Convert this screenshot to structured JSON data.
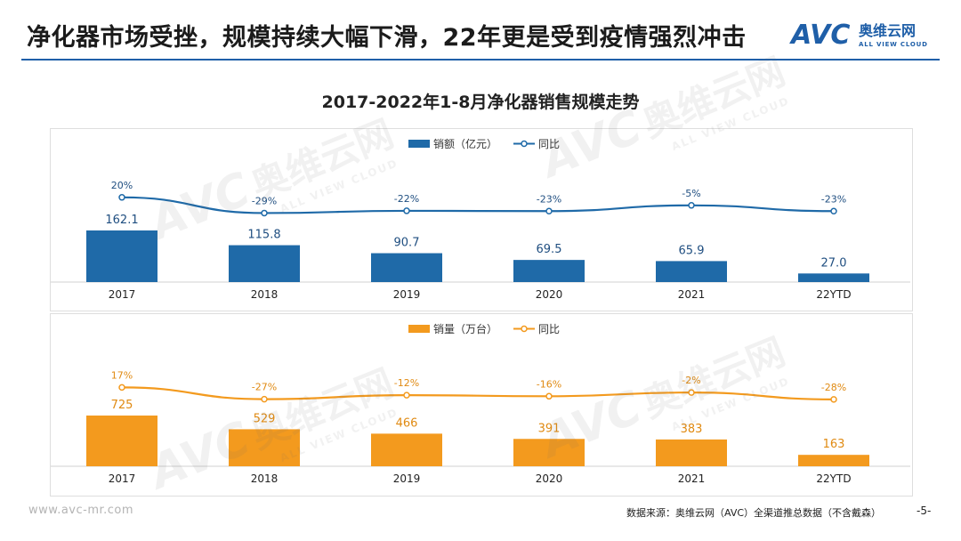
{
  "header": {
    "title": "净化器市场受挫，规模持续大幅下滑，22年更是受到疫情强烈冲击",
    "logo_mark": "AVC",
    "logo_cn": "奥维云网",
    "logo_en": "ALL VIEW CLOUD"
  },
  "footer": {
    "website": "www.avc-mr.com",
    "source": "数据来源：奥维云网（AVC）全渠道推总数据（不含戴森）",
    "page": "-5-"
  },
  "colors": {
    "brand": "#1f5fa8",
    "value_bar": "#1f6aa8",
    "volume_bar": "#f39a1e",
    "value_line": "#1f6aa8",
    "volume_line": "#f39a1e"
  },
  "chart_data": [
    {
      "type": "bar",
      "title": "2017-2022年1-8月净化器销售规模走势",
      "categories": [
        "2017",
        "2018",
        "2019",
        "2020",
        "2021",
        "22YTD"
      ],
      "series": [
        {
          "name": "销额（亿元）",
          "type": "bar",
          "values": [
            162.1,
            115.8,
            90.7,
            69.5,
            65.9,
            27.0
          ],
          "labels": [
            "162.1",
            "115.8",
            "90.7",
            "69.5",
            "65.9",
            "27.0"
          ]
        },
        {
          "name": "同比",
          "type": "line",
          "values": [
            20,
            -29,
            -22,
            -23,
            -5,
            -23
          ],
          "labels": [
            "20%",
            "-29%",
            "-22%",
            "-23%",
            "-5%",
            "-23%"
          ]
        }
      ],
      "legend": "top-center",
      "grid": false
    },
    {
      "type": "bar",
      "categories": [
        "2017",
        "2018",
        "2019",
        "2020",
        "2021",
        "22YTD"
      ],
      "series": [
        {
          "name": "销量（万台）",
          "type": "bar",
          "values": [
            725,
            529,
            466,
            391,
            383,
            163
          ],
          "labels": [
            "725",
            "529",
            "466",
            "391",
            "383",
            "163"
          ]
        },
        {
          "name": "同比",
          "type": "line",
          "values": [
            17,
            -27,
            -12,
            -16,
            -2,
            -28
          ],
          "labels": [
            "17%",
            "-27%",
            "-12%",
            "-16%",
            "-2%",
            "-28%"
          ]
        }
      ],
      "legend": "top-center",
      "grid": false
    }
  ]
}
